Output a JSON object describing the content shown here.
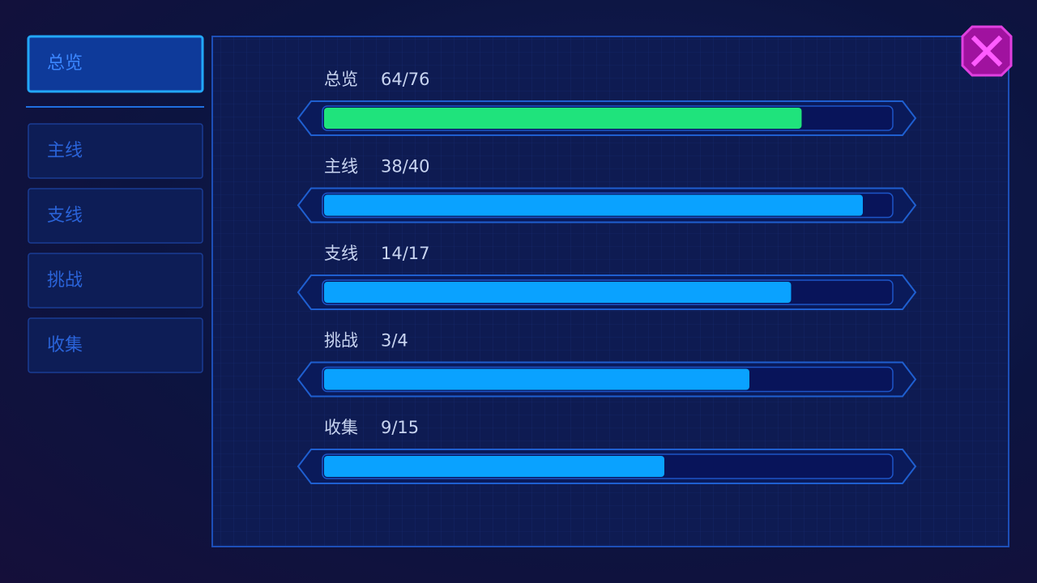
{
  "tabs": [
    {
      "label": "总览",
      "active": true
    },
    {
      "label": "主线",
      "active": false
    },
    {
      "label": "支线",
      "active": false
    },
    {
      "label": "挑战",
      "active": false
    },
    {
      "label": "收集",
      "active": false
    }
  ],
  "items": [
    {
      "label": "总览",
      "value_label": "64/76",
      "value": 64,
      "total": 76,
      "color": "#1fe37c"
    },
    {
      "label": "主线",
      "value_label": "38/40",
      "value": 38,
      "total": 40,
      "color": "#0aa2ff"
    },
    {
      "label": "支线",
      "value_label": "14/17",
      "value": 14,
      "total": 17,
      "color": "#0aa2ff"
    },
    {
      "label": "挑战",
      "value_label": "3/4",
      "value": 3,
      "total": 4,
      "color": "#0aa2ff"
    },
    {
      "label": "收集",
      "value_label": "9/15",
      "value": 9,
      "total": 15,
      "color": "#0aa2ff"
    }
  ]
}
